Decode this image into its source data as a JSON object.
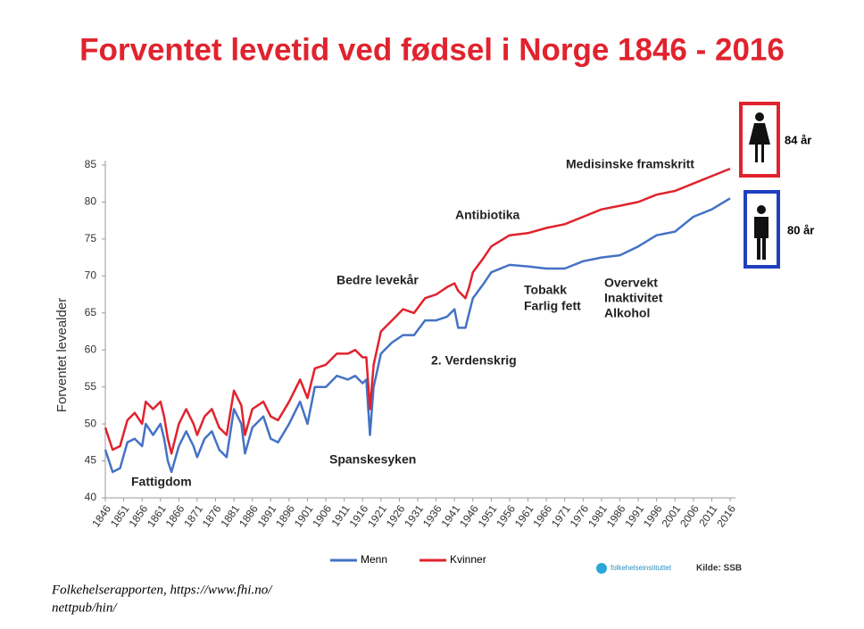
{
  "chart_data": {
    "type": "line",
    "title": "Forventet levetid ved fødsel i Norge 1846 - 2016",
    "y_label": "Forventet levealder",
    "x": [
      1846,
      1848,
      1850,
      1852,
      1854,
      1856,
      1857,
      1859,
      1861,
      1862,
      1863,
      1864,
      1866,
      1868,
      1870,
      1871,
      1873,
      1875,
      1877,
      1879,
      1881,
      1883,
      1884,
      1886,
      1889,
      1891,
      1893,
      1896,
      1899,
      1901,
      1903,
      1906,
      1909,
      1912,
      1914,
      1916,
      1917,
      1918,
      1919,
      1921,
      1924,
      1927,
      1930,
      1933,
      1936,
      1939,
      1941,
      1942,
      1944,
      1945,
      1946,
      1949,
      1951,
      1956,
      1961,
      1966,
      1971,
      1976,
      1981,
      1986,
      1991,
      1996,
      2001,
      2006,
      2011,
      2016
    ],
    "series": [
      {
        "name": "Menn",
        "color": "#4472c4",
        "values": [
          46.5,
          43.5,
          44,
          47.5,
          48,
          47,
          50,
          48.5,
          50,
          48,
          45,
          43.5,
          47,
          49,
          47,
          45.5,
          48,
          49,
          46.5,
          45.5,
          52,
          50,
          46,
          49.5,
          51,
          48,
          47.5,
          50,
          53,
          50,
          55,
          55,
          56.5,
          56,
          56.5,
          55.5,
          56,
          48.5,
          55,
          59.5,
          61,
          62,
          62,
          64,
          64,
          64.5,
          65.5,
          63,
          63,
          65,
          67,
          69,
          70.5,
          71.5,
          71.3,
          71,
          71,
          72,
          72.5,
          72.8,
          74,
          75.5,
          76,
          78,
          79,
          80.5
        ]
      },
      {
        "name": "Kvinner",
        "color": "#e0232e",
        "values": [
          49.5,
          46.5,
          47,
          50.5,
          51.5,
          50,
          53,
          52,
          53,
          51,
          48,
          46,
          50,
          52,
          50,
          48.5,
          51,
          52,
          49.5,
          48.5,
          54.5,
          52.5,
          48.5,
          52,
          53,
          51,
          50.5,
          53,
          56,
          53.5,
          57.5,
          58,
          59.5,
          59.5,
          60,
          59,
          59,
          52,
          58,
          62.5,
          64,
          65.5,
          65,
          67,
          67.5,
          68.5,
          69,
          68,
          67,
          68.5,
          70.5,
          72.5,
          74,
          75.5,
          75.8,
          76.5,
          77,
          78,
          79,
          79.5,
          80,
          81,
          81.5,
          82.5,
          83.5,
          84.5
        ]
      }
    ],
    "xlim": [
      1846,
      2016
    ],
    "xticks": [
      1846,
      1851,
      1856,
      1861,
      1866,
      1871,
      1876,
      1881,
      1886,
      1891,
      1896,
      1901,
      1906,
      1911,
      1916,
      1921,
      1926,
      1931,
      1936,
      1941,
      1946,
      1951,
      1956,
      1961,
      1966,
      1971,
      1976,
      1981,
      1986,
      1991,
      1996,
      2001,
      2006,
      2011,
      2016
    ],
    "ylim": [
      40,
      85
    ],
    "yticks": [
      40,
      45,
      50,
      55,
      60,
      65,
      70,
      75,
      80,
      85
    ],
    "grid": false,
    "annotations": [
      "Fattigdom",
      "Spanskesyken",
      "Bedre levekår",
      "2. Verdenskrig",
      "Antibiotika",
      "Tobakk",
      "Farlig fett",
      "Overvekt",
      "Inaktivitet",
      "Alkohol",
      "Medisinske  framskritt"
    ],
    "icon_labels": [
      "84 år",
      "80 år"
    ],
    "logo": "folkehelseinstituttet",
    "source": "Kilde: SSB",
    "citation": [
      "Folkehelserapporten, https://www.fhi.no/",
      "nettpub/hin/"
    ]
  }
}
